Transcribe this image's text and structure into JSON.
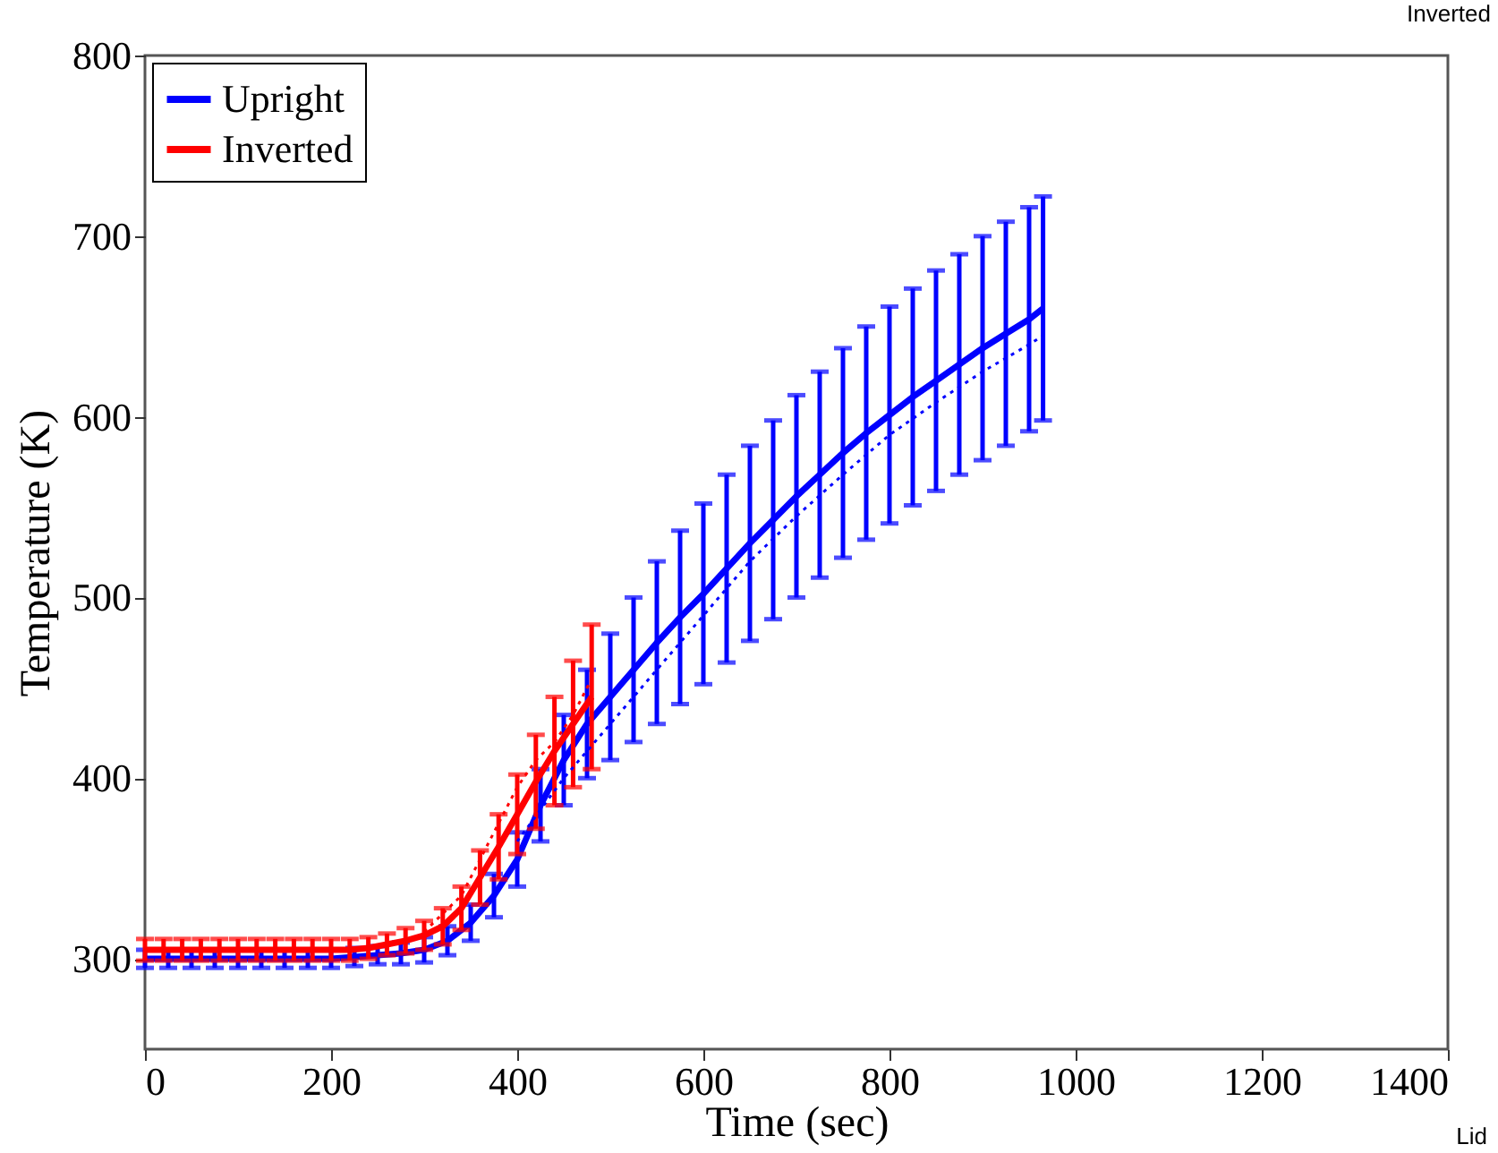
{
  "chart_data": {
    "type": "line",
    "xlabel": "Time (sec)",
    "ylabel": "Temperature (K)",
    "annotations": [
      "Inverted",
      "Lid"
    ],
    "xlim": [
      0,
      1400
    ],
    "xticks": [
      0,
      200,
      400,
      600,
      800,
      1000,
      1200,
      1400
    ],
    "ylim": [
      250,
      800
    ],
    "yticks": [
      300,
      400,
      500,
      600,
      700,
      800
    ],
    "grid": false,
    "legend": "top left",
    "marker": "none",
    "series": [
      {
        "name": "Upright",
        "color": "#0000ff",
        "line_style": "solid",
        "x": [
          0,
          25,
          50,
          75,
          100,
          125,
          150,
          175,
          200,
          225,
          250,
          275,
          300,
          325,
          350,
          375,
          400,
          425,
          450,
          475,
          500,
          525,
          550,
          575,
          600,
          625,
          650,
          675,
          700,
          725,
          750,
          775,
          800,
          825,
          850,
          875,
          900,
          925,
          950,
          965
        ],
        "values": [
          300,
          300,
          300,
          300,
          300,
          300,
          300,
          300,
          300,
          301,
          302,
          303,
          305,
          310,
          320,
          335,
          355,
          385,
          410,
          430,
          445,
          460,
          475,
          489,
          502,
          516,
          530,
          543,
          556,
          568,
          580,
          591,
          601,
          611,
          620,
          629,
          638,
          646,
          654,
          660
        ],
        "errors": [
          5,
          5,
          5,
          5,
          5,
          5,
          5,
          5,
          5,
          5,
          5,
          6,
          7,
          8,
          10,
          12,
          15,
          20,
          25,
          30,
          35,
          40,
          45,
          48,
          50,
          52,
          54,
          55,
          56,
          57,
          58,
          59,
          60,
          60,
          61,
          61,
          62,
          62,
          62,
          62
        ]
      },
      {
        "name": "Inverted",
        "color": "#ff0000",
        "line_style": "solid",
        "x": [
          0,
          20,
          40,
          60,
          80,
          100,
          120,
          140,
          160,
          180,
          200,
          220,
          240,
          260,
          280,
          300,
          320,
          340,
          360,
          380,
          400,
          420,
          440,
          460,
          480
        ],
        "values": [
          305,
          305,
          305,
          305,
          305,
          305,
          305,
          305,
          305,
          305,
          305,
          305,
          306,
          308,
          310,
          313,
          318,
          328,
          345,
          362,
          380,
          398,
          415,
          430,
          445
        ],
        "errors": [
          6,
          6,
          6,
          6,
          6,
          6,
          6,
          6,
          6,
          6,
          6,
          6,
          6,
          6,
          7,
          8,
          10,
          12,
          15,
          18,
          22,
          26,
          30,
          35,
          40
        ]
      },
      {
        "color": "#0000ff",
        "line_style": "dotted",
        "x": [
          400,
          450,
          500,
          550,
          600,
          650,
          700,
          750,
          800,
          850,
          900,
          950,
          965
        ],
        "values": [
          365,
          400,
          430,
          460,
          490,
          520,
          545,
          568,
          590,
          608,
          625,
          640,
          645
        ]
      },
      {
        "color": "#ff0000",
        "line_style": "dotted",
        "x": [
          300,
          340,
          380,
          400,
          420,
          440,
          460,
          480
        ],
        "values": [
          315,
          335,
          375,
          395,
          410,
          420,
          435,
          455
        ]
      }
    ]
  }
}
